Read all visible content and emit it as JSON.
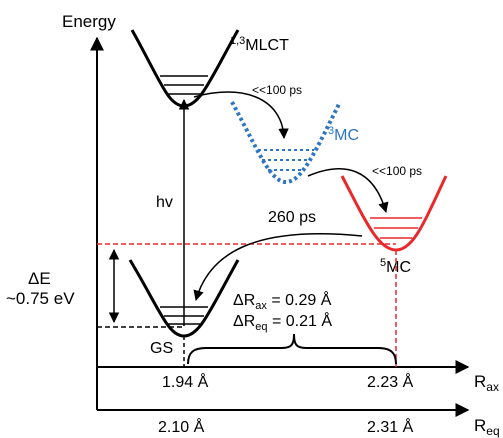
{
  "axes": {
    "y_label": "Energy",
    "x1_label": "R",
    "x1_sub": "ax",
    "x2_label": "R",
    "x2_sub": "eq"
  },
  "ticks": {
    "ax_left": "1.94 Å",
    "ax_right": "2.23 Å",
    "eq_left": "2.10 Å",
    "eq_right": "2.31 Å"
  },
  "states": {
    "gs": "GS",
    "mlct_sup": "1,3",
    "mlct": "MLCT",
    "mc3_sup": "3",
    "mc3": "MC",
    "mc5_sup": "5",
    "mc5": "MC"
  },
  "annotations": {
    "hv": "hv",
    "t1": "<<100 ps",
    "t2": "<<100 ps",
    "t3": "260 ps",
    "delta_e": "ΔE",
    "delta_e_value": "~0.75 eV",
    "dr_ax_prefix": "ΔR",
    "dr_ax_sub": "ax",
    "dr_ax_value": " = 0.29 Å",
    "dr_eq_prefix": "ΔR",
    "dr_eq_sub": "eq",
    "dr_eq_value": " = 0.21 Å"
  },
  "colors": {
    "black": "#000000",
    "blue": "#2e75c4",
    "red": "#e8282b"
  }
}
